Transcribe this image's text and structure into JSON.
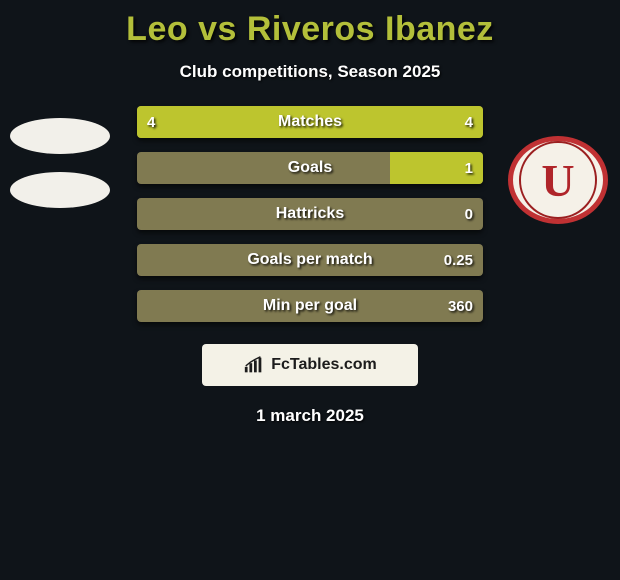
{
  "title": "Leo vs Riveros Ibanez",
  "subtitle": "Club competitions, Season 2025",
  "date": "1 march 2025",
  "attribution": "FcTables.com",
  "colors": {
    "background": "#0f1419",
    "accent": "#b3bf3a",
    "bar_track": "#807a51",
    "left_fill": "#bdc52e",
    "right_fill": "#bdc52e",
    "text_white": "#ffffff",
    "attribution_bg": "#f4f2e7"
  },
  "left": {
    "player": "Leo",
    "club_badge": null
  },
  "right": {
    "player": "Riveros Ibanez",
    "club_badge": "U",
    "club_badge_color": "#b0252a"
  },
  "bars": [
    {
      "label": "Matches",
      "left": "4",
      "right": "4",
      "left_pct": 50,
      "right_pct": 50
    },
    {
      "label": "Goals",
      "left": "",
      "right": "1",
      "left_pct": 0,
      "right_pct": 27
    },
    {
      "label": "Hattricks",
      "left": "",
      "right": "0",
      "left_pct": 0,
      "right_pct": 0
    },
    {
      "label": "Goals per match",
      "left": "",
      "right": "0.25",
      "left_pct": 0,
      "right_pct": 0
    },
    {
      "label": "Min per goal",
      "left": "",
      "right": "360",
      "left_pct": 0,
      "right_pct": 0
    }
  ],
  "typography": {
    "title_fontsize": 34,
    "subtitle_fontsize": 17,
    "bar_label_fontsize": 16,
    "bar_value_fontsize": 15
  }
}
